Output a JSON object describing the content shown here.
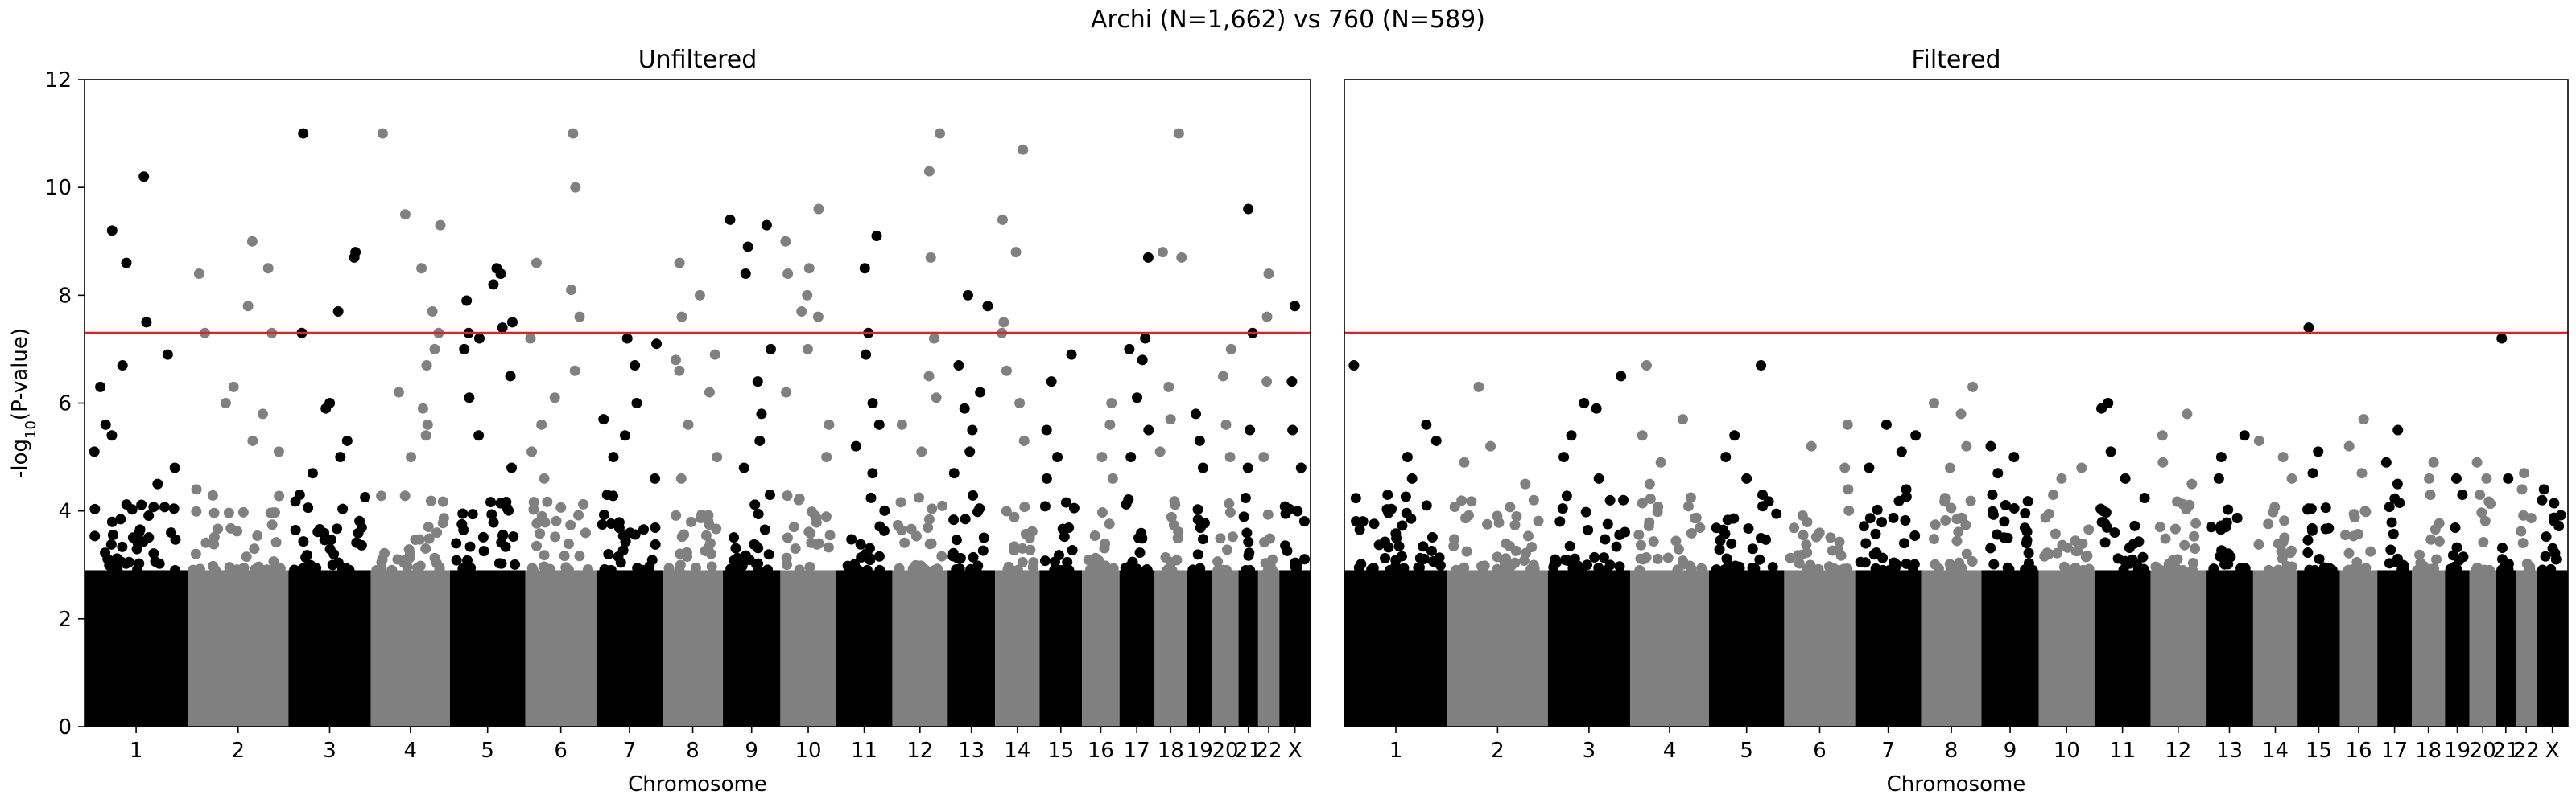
{
  "figure": {
    "suptitle": "Archi (N=1,662) vs 760 (N=589)"
  },
  "colors": {
    "point_dark": "#000000",
    "point_light": "#808080",
    "threshold_line": "#d62728",
    "axes": "#000000"
  },
  "chart_data": [
    {
      "type": "scatter",
      "subtype": "manhattan",
      "title": "Unfiltered",
      "xlabel": "Chromosome",
      "ylabel": "-log10(P-value)",
      "ylim": [
        0,
        12
      ],
      "yticks": [
        0,
        2,
        4,
        6,
        8,
        10,
        12
      ],
      "xticklabels": [
        "1",
        "2",
        "3",
        "4",
        "5",
        "6",
        "7",
        "8",
        "9",
        "10",
        "11",
        "12",
        "13",
        "14",
        "15",
        "16",
        "17",
        "18",
        "19",
        "20",
        "21",
        "22",
        "X"
      ],
      "grid": false,
      "threshold": 7.3,
      "dense_band_max": 2.9,
      "chromosome_colors": [
        "dark",
        "light",
        "dark",
        "light",
        "dark",
        "light",
        "dark",
        "light",
        "dark",
        "light",
        "dark",
        "light",
        "dark",
        "light",
        "dark",
        "light",
        "dark",
        "light",
        "dark",
        "light",
        "dark",
        "light",
        "dark"
      ],
      "peaks": [
        {
          "chr": "1",
          "values": [
            10.2,
            9.2,
            8.6,
            7.5,
            6.9,
            6.7,
            6.3,
            5.6,
            5.4,
            5.1,
            4.8,
            4.5
          ]
        },
        {
          "chr": "2",
          "values": [
            9.0,
            8.5,
            8.4,
            7.8,
            7.3,
            7.3,
            6.3,
            6.0,
            5.8,
            5.3,
            5.1,
            4.4
          ]
        },
        {
          "chr": "3",
          "values": [
            11.0,
            8.8,
            8.7,
            7.7,
            7.3,
            6.0,
            5.9,
            5.3,
            5.0,
            4.7,
            4.3
          ]
        },
        {
          "chr": "4",
          "values": [
            11.0,
            9.5,
            9.3,
            8.5,
            7.7,
            7.3,
            7.0,
            6.7,
            6.2,
            5.9,
            5.6,
            5.4,
            5.0
          ]
        },
        {
          "chr": "5",
          "values": [
            8.5,
            8.4,
            8.2,
            7.9,
            7.5,
            7.4,
            7.3,
            7.2,
            7.0,
            6.5,
            6.1,
            5.4,
            4.8
          ]
        },
        {
          "chr": "6",
          "values": [
            11.0,
            10.0,
            8.6,
            8.1,
            7.6,
            7.2,
            6.6,
            6.1,
            5.6,
            5.1,
            4.6
          ]
        },
        {
          "chr": "7",
          "values": [
            7.2,
            7.1,
            6.7,
            6.0,
            5.7,
            5.4,
            5.0,
            4.6,
            4.3
          ]
        },
        {
          "chr": "8",
          "values": [
            8.6,
            8.0,
            7.6,
            6.9,
            6.8,
            6.6,
            6.2,
            5.6,
            5.0,
            4.6
          ]
        },
        {
          "chr": "9",
          "values": [
            9.4,
            9.3,
            8.9,
            8.4,
            7.0,
            6.4,
            5.8,
            5.3,
            4.8,
            4.3
          ]
        },
        {
          "chr": "10",
          "values": [
            9.6,
            9.0,
            8.5,
            8.4,
            8.0,
            7.7,
            7.6,
            7.0,
            6.2,
            5.6,
            5.0
          ]
        },
        {
          "chr": "11",
          "values": [
            9.1,
            8.5,
            7.3,
            6.9,
            6.0,
            5.6,
            5.2,
            4.7
          ]
        },
        {
          "chr": "12",
          "values": [
            11.0,
            10.3,
            8.7,
            7.2,
            6.5,
            6.1,
            5.6,
            5.1
          ]
        },
        {
          "chr": "13",
          "values": [
            8.0,
            7.8,
            6.7,
            6.2,
            5.9,
            5.5,
            5.1,
            4.7
          ]
        },
        {
          "chr": "14",
          "values": [
            10.7,
            9.4,
            8.8,
            7.5,
            7.3,
            6.6,
            6.0,
            5.3
          ]
        },
        {
          "chr": "15",
          "values": [
            6.9,
            6.4,
            5.5,
            5.0,
            4.6
          ]
        },
        {
          "chr": "16",
          "values": [
            6.0,
            5.6,
            5.0,
            4.6
          ]
        },
        {
          "chr": "17",
          "values": [
            8.7,
            7.2,
            7.0,
            6.8,
            6.1,
            5.5,
            5.0
          ]
        },
        {
          "chr": "18",
          "values": [
            11.0,
            8.8,
            8.7,
            6.3,
            5.7,
            5.1
          ]
        },
        {
          "chr": "19",
          "values": [
            5.8,
            5.3,
            4.8
          ]
        },
        {
          "chr": "20",
          "values": [
            7.0,
            6.5,
            5.6,
            5.0
          ]
        },
        {
          "chr": "21",
          "values": [
            9.6,
            7.3,
            5.5,
            4.8
          ]
        },
        {
          "chr": "22",
          "values": [
            8.4,
            7.6,
            6.4,
            5.0
          ]
        },
        {
          "chr": "X",
          "values": [
            7.8,
            6.4,
            5.5,
            4.8
          ]
        }
      ]
    },
    {
      "type": "scatter",
      "subtype": "manhattan",
      "title": "Filtered",
      "xlabel": "Chromosome",
      "ylabel": "",
      "ylim": [
        0,
        12
      ],
      "yticks": [],
      "xticklabels": [
        "1",
        "2",
        "3",
        "4",
        "5",
        "6",
        "7",
        "8",
        "9",
        "10",
        "11",
        "12",
        "13",
        "14",
        "15",
        "16",
        "17",
        "18",
        "19",
        "20",
        "21",
        "22",
        "X"
      ],
      "grid": false,
      "threshold": 7.3,
      "dense_band_max": 2.9,
      "chromosome_colors": [
        "dark",
        "light",
        "dark",
        "light",
        "dark",
        "light",
        "dark",
        "light",
        "dark",
        "light",
        "dark",
        "light",
        "dark",
        "light",
        "dark",
        "light",
        "dark",
        "light",
        "dark",
        "light",
        "dark",
        "light",
        "dark"
      ],
      "peaks": [
        {
          "chr": "1",
          "values": [
            6.7,
            5.6,
            5.3,
            5.0,
            4.6,
            4.3
          ]
        },
        {
          "chr": "2",
          "values": [
            6.3,
            5.2,
            4.9,
            4.5,
            4.2
          ]
        },
        {
          "chr": "3",
          "values": [
            6.5,
            6.0,
            5.9,
            5.4,
            5.0,
            4.6
          ]
        },
        {
          "chr": "4",
          "values": [
            6.7,
            5.7,
            5.4,
            4.9,
            4.5
          ]
        },
        {
          "chr": "5",
          "values": [
            6.7,
            5.4,
            5.0,
            4.6,
            4.3
          ]
        },
        {
          "chr": "6",
          "values": [
            5.6,
            5.2,
            4.8,
            4.4
          ]
        },
        {
          "chr": "7",
          "values": [
            5.6,
            5.4,
            5.1,
            4.8,
            4.4
          ]
        },
        {
          "chr": "8",
          "values": [
            6.3,
            6.0,
            5.8,
            5.2,
            4.8
          ]
        },
        {
          "chr": "9",
          "values": [
            5.2,
            5.0,
            4.7,
            4.3
          ]
        },
        {
          "chr": "10",
          "values": [
            4.8,
            4.6,
            4.3
          ]
        },
        {
          "chr": "11",
          "values": [
            6.0,
            5.9,
            5.1,
            4.6
          ]
        },
        {
          "chr": "12",
          "values": [
            5.8,
            5.4,
            4.9,
            4.5
          ]
        },
        {
          "chr": "13",
          "values": [
            5.4,
            5.0,
            4.6
          ]
        },
        {
          "chr": "14",
          "values": [
            5.3,
            5.0,
            4.6
          ]
        },
        {
          "chr": "15",
          "values": [
            7.4,
            5.1,
            4.7
          ]
        },
        {
          "chr": "16",
          "values": [
            5.7,
            5.2,
            4.7
          ]
        },
        {
          "chr": "17",
          "values": [
            5.5,
            4.9,
            4.5
          ]
        },
        {
          "chr": "18",
          "values": [
            4.9,
            4.6,
            4.3
          ]
        },
        {
          "chr": "19",
          "values": [
            4.6,
            4.3
          ]
        },
        {
          "chr": "20",
          "values": [
            4.9,
            4.6,
            4.3
          ]
        },
        {
          "chr": "21",
          "values": [
            7.2,
            4.6
          ]
        },
        {
          "chr": "22",
          "values": [
            4.7,
            4.4
          ]
        },
        {
          "chr": "X",
          "values": [
            4.4,
            4.2
          ]
        }
      ]
    }
  ]
}
